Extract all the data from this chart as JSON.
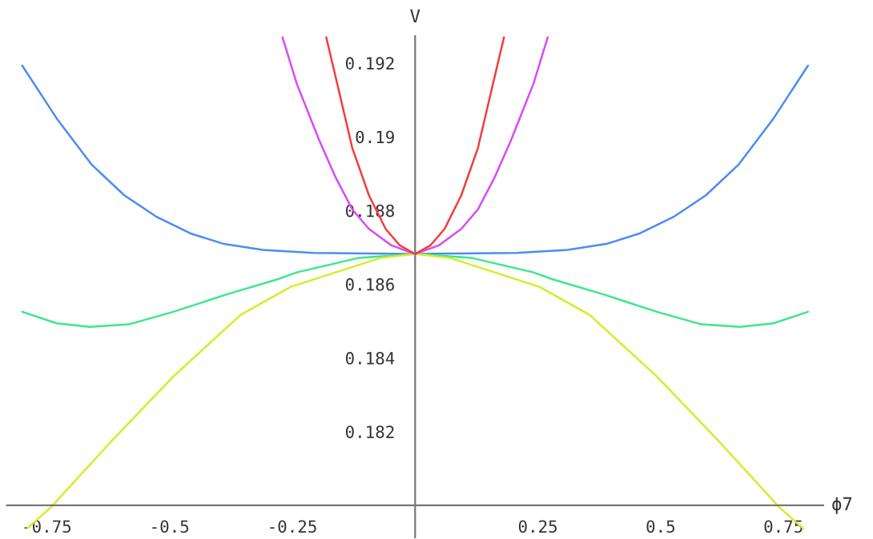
{
  "chart_data": {
    "type": "line",
    "xlabel": "ϕ7",
    "ylabel": "V",
    "xlim": [
      -0.831,
      0.831
    ],
    "ylim": [
      0.17913,
      0.19273
    ],
    "xticks": [
      -0.75,
      -0.5,
      -0.25,
      0.25,
      0.5,
      0.75
    ],
    "yticks": [
      0.182,
      0.184,
      0.186,
      0.188,
      0.19,
      0.192
    ],
    "grid": false,
    "legend": false,
    "marker": "none",
    "line_style": "solid",
    "series": [
      {
        "color": "#4a8cf5",
        "x": [
          -0.8,
          -0.73,
          -0.659,
          -0.592,
          -0.528,
          -0.458,
          -0.389,
          -0.31,
          -0.207,
          0,
          0.207,
          0.31,
          0.389,
          0.458,
          0.528,
          0.592,
          0.659,
          0.73,
          0.8
        ],
        "values": [
          0.19193,
          0.1905,
          0.18925,
          0.18841,
          0.18784,
          0.18738,
          0.18709,
          0.18693,
          0.18685,
          0.18682,
          0.18685,
          0.18693,
          0.18709,
          0.18738,
          0.18784,
          0.18841,
          0.18925,
          0.1905,
          0.19193
        ]
      },
      {
        "color": "#3ae88a",
        "x": [
          -0.8,
          -0.73,
          -0.662,
          -0.583,
          -0.492,
          -0.389,
          -0.276,
          -0.241,
          -0.116,
          0,
          0.116,
          0.241,
          0.276,
          0.389,
          0.492,
          0.583,
          0.662,
          0.73,
          0.8
        ],
        "values": [
          0.18525,
          0.18494,
          0.18484,
          0.18491,
          0.18525,
          0.1857,
          0.18615,
          0.18632,
          0.18671,
          0.18682,
          0.18671,
          0.18632,
          0.18615,
          0.1857,
          0.18525,
          0.18491,
          0.18484,
          0.18494,
          0.18525
        ]
      },
      {
        "color": "#d6ec2a",
        "x": [
          -0.79,
          -0.742,
          -0.617,
          -0.492,
          -0.355,
          -0.253,
          -0.162,
          -0.071,
          0,
          0.071,
          0.162,
          0.253,
          0.355,
          0.492,
          0.617,
          0.742,
          0.79
        ],
        "values": [
          0.17937,
          0.17994,
          0.18176,
          0.1835,
          0.18517,
          0.18593,
          0.18632,
          0.18671,
          0.18682,
          0.18671,
          0.18632,
          0.18593,
          0.18517,
          0.1835,
          0.18176,
          0.17994,
          0.17937
        ]
      },
      {
        "color": "#d84af8",
        "x": [
          -0.27,
          -0.241,
          -0.196,
          -0.162,
          -0.128,
          -0.094,
          -0.048,
          0,
          0.048,
          0.094,
          0.128,
          0.162,
          0.196,
          0.241,
          0.27
        ],
        "values": [
          0.1927,
          0.19144,
          0.18993,
          0.1889,
          0.18803,
          0.1875,
          0.18705,
          0.18682,
          0.18705,
          0.1875,
          0.18803,
          0.1889,
          0.18993,
          0.19144,
          0.1927
        ]
      },
      {
        "color": "#f53b3b",
        "x": [
          -0.181,
          -0.156,
          -0.128,
          -0.094,
          -0.06,
          -0.031,
          0,
          0.031,
          0.06,
          0.094,
          0.128,
          0.156,
          0.181
        ],
        "values": [
          0.1927,
          0.19129,
          0.1897,
          0.18841,
          0.1875,
          0.18705,
          0.18682,
          0.18705,
          0.1875,
          0.18841,
          0.1897,
          0.19129,
          0.1927
        ]
      }
    ]
  }
}
